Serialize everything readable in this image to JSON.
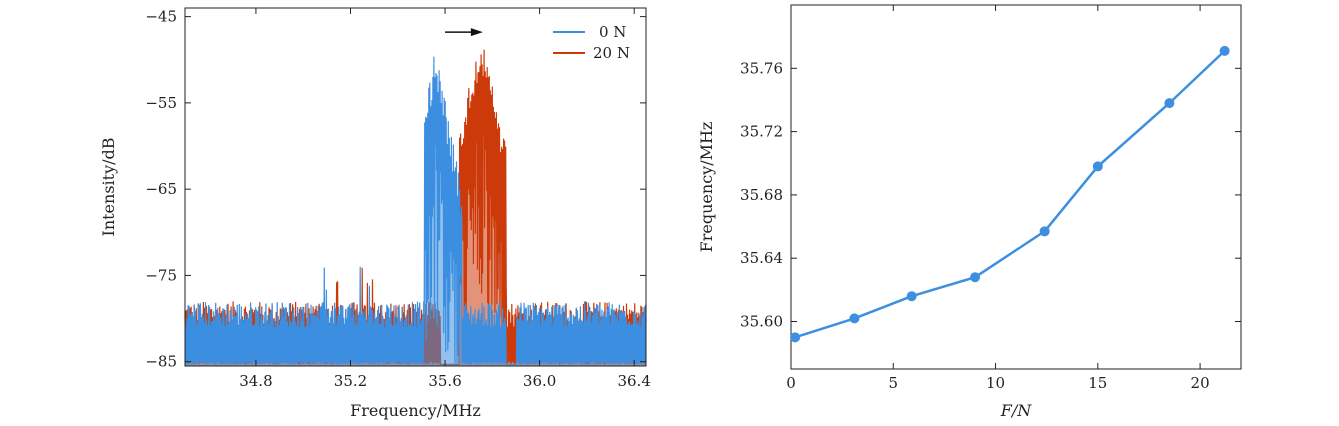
{
  "chart_data": [
    {
      "type": "line",
      "xlabel": "Frequency/MHz",
      "ylabel": "Intensity/dB",
      "xlim": [
        34.5,
        36.45
      ],
      "ylim": [
        -85.5,
        -44
      ],
      "xticks": [
        34.8,
        35.2,
        35.6,
        36.0,
        36.4
      ],
      "xtick_labels": [
        "34.8",
        "35.2",
        "35.6",
        "36.0",
        "36.4"
      ],
      "yticks": [
        -45,
        -55,
        -65,
        -75,
        -85
      ],
      "ytick_labels": [
        "−45",
        "−55",
        "−65",
        "−75",
        "−85"
      ],
      "legend_placement": "top-right",
      "series": [
        {
          "name": "0 N",
          "color": "#3d8fe0",
          "noise_floor_db": -81,
          "noise_spikes_db": [
            -76,
            -77
          ],
          "band_mhz": [
            35.51,
            35.67
          ],
          "peak_mhz": 35.56,
          "peak_db": -48.5
        },
        {
          "name": "20 N",
          "color": "#cc3a0b",
          "noise_floor_db": -81,
          "noise_spikes_db": [
            -76,
            -77
          ],
          "band_mhz": [
            35.66,
            35.86
          ],
          "peak_mhz": 35.75,
          "peak_db": -47
        }
      ],
      "annotation": {
        "type": "arrow",
        "from": [
          35.6,
          -46.8
        ],
        "to": [
          35.76,
          -46.8
        ]
      }
    },
    {
      "type": "line",
      "xlabel": "F/N",
      "ylabel": "Frequency/MHz",
      "xlim": [
        0,
        22
      ],
      "ylim": [
        35.57,
        35.8
      ],
      "xticks": [
        0,
        5,
        10,
        15,
        20
      ],
      "xtick_labels": [
        "0",
        "5",
        "10",
        "15",
        "20"
      ],
      "yticks": [
        35.6,
        35.64,
        35.68,
        35.72,
        35.76
      ],
      "ytick_labels": [
        "35.60",
        "35.64",
        "35.68",
        "35.72",
        "35.76"
      ],
      "series": [
        {
          "color": "#3d8fe0",
          "x": [
            0.2,
            3.1,
            5.9,
            9.0,
            12.4,
            15.0,
            18.5,
            21.2
          ],
          "y": [
            35.59,
            35.602,
            35.616,
            35.628,
            35.657,
            35.698,
            35.738,
            35.771
          ]
        }
      ]
    }
  ]
}
